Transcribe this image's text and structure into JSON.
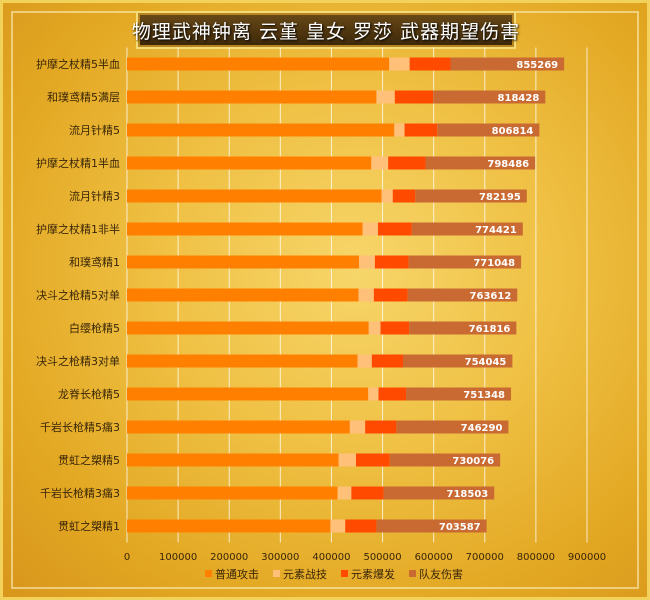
{
  "chart_data": {
    "type": "bar",
    "orientation": "horizontal",
    "stacked": true,
    "title": "物理武神钟离 云堇 皇女 罗莎 武器期望伤害",
    "categories": [
      "护摩之杖精5半血",
      "和璞鸢精5满层",
      "流月针精5",
      "护摩之杖精1半血",
      "流月针精3",
      "护摩之杖精1非半",
      "和璞鸢精1",
      "决斗之枪精5对单",
      "白缨枪精5",
      "决斗之枪精3对单",
      "龙脊长枪精5",
      "千岩长枪精5痛3",
      "贯虹之槊精5",
      "千岩长枪精3痛3",
      "贯虹之槊精1"
    ],
    "totals": [
      855269,
      818428,
      806814,
      798486,
      782195,
      774421,
      771048,
      763612,
      761816,
      754045,
      751348,
      746290,
      730076,
      718503,
      703587
    ],
    "total_labels": [
      "855269",
      "818428",
      "806814",
      "798486",
      "782195",
      "774421",
      "771048",
      "763612",
      "761816",
      "754045",
      "751348",
      "746290",
      "730076",
      "718503",
      "703587"
    ],
    "series": [
      {
        "name": "普通攻击",
        "color": "#ff8000",
        "values": [
          513000,
          488000,
          523000,
          478000,
          498000,
          461000,
          454000,
          453000,
          473000,
          451000,
          472000,
          436000,
          414000,
          412000,
          398000
        ]
      },
      {
        "name": "元素战技",
        "color": "#ffc07a",
        "values": [
          40000,
          36000,
          20000,
          33000,
          22000,
          30000,
          31000,
          30000,
          23000,
          28000,
          20000,
          30000,
          34000,
          27000,
          29000
        ]
      },
      {
        "name": "元素爆发",
        "color": "#ff4a00",
        "values": [
          80000,
          75000,
          64000,
          73000,
          44000,
          66000,
          66000,
          66000,
          56000,
          61000,
          54000,
          61000,
          66000,
          63000,
          61000
        ]
      },
      {
        "name": "队友伤害",
        "color": "#c96a32",
        "values": [
          222269,
          219428,
          199814,
          214486,
          218195,
          217421,
          220048,
          214612,
          209816,
          214045,
          205348,
          219290,
          216076,
          216503,
          215587
        ]
      }
    ],
    "xlim": [
      0,
      900000
    ],
    "x_ticks": [
      0,
      100000,
      200000,
      300000,
      400000,
      500000,
      600000,
      700000,
      800000,
      900000
    ],
    "x_tick_labels": [
      "0",
      "100000",
      "200000",
      "300000",
      "400000",
      "500000",
      "600000",
      "700000",
      "800000",
      "900000"
    ],
    "grid": true,
    "legend_position": "bottom"
  }
}
